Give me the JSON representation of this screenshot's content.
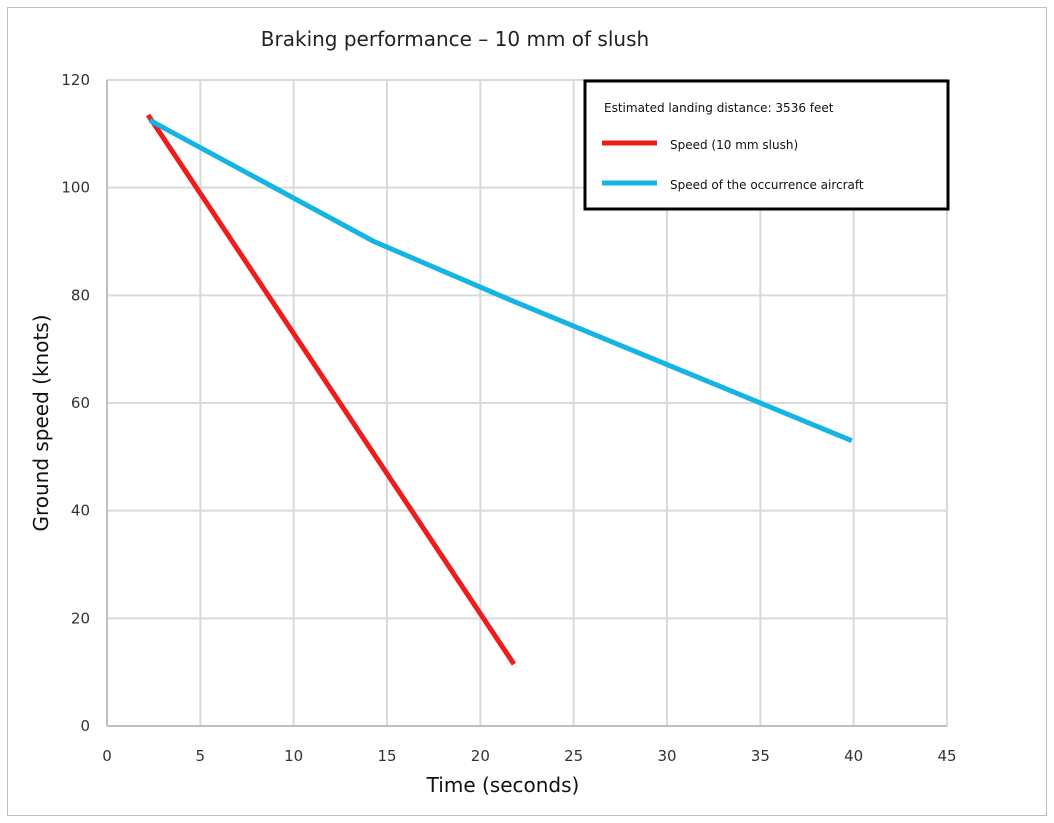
{
  "chart_data": {
    "type": "line",
    "title": "Braking performance – 10 mm of slush",
    "xlabel": "Time (seconds)",
    "ylabel": "Ground speed (knots)",
    "xlim": [
      0,
      45
    ],
    "ylim": [
      0,
      120
    ],
    "xticks": [
      0,
      5,
      10,
      15,
      20,
      25,
      30,
      35,
      40,
      45
    ],
    "yticks": [
      0,
      20,
      40,
      60,
      80,
      100,
      120
    ],
    "grid": true,
    "legend_position": "top-right",
    "legend_note": "Estimated landing distance: 3536 feet",
    "series": [
      {
        "name": "Speed (10 mm slush)",
        "color": "#ee1c1c",
        "x": [
          2.2,
          21.8
        ],
        "y": [
          113.5,
          11.5
        ]
      },
      {
        "name": "Speed of the occurrence aircraft",
        "color": "#14b4e4",
        "x": [
          2.3,
          14.3,
          21.7,
          39.9
        ],
        "y": [
          112.5,
          90,
          79,
          53
        ]
      }
    ]
  }
}
